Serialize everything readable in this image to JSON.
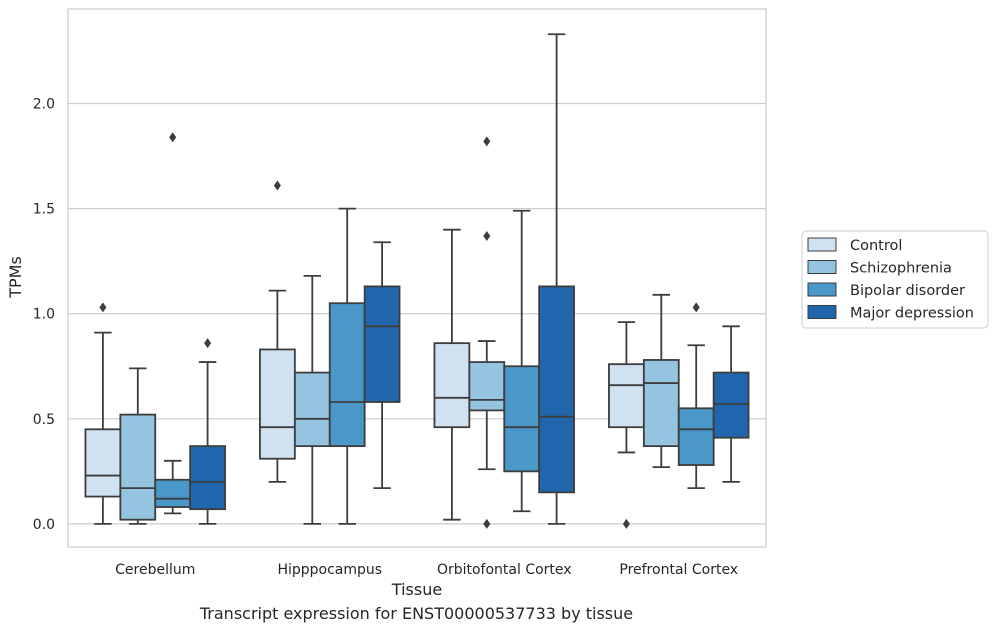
{
  "chart_data": {
    "type": "box",
    "xlabel": "Tissue",
    "ylabel": "TPMs",
    "caption": "Transcript expression for ENST00000537733 by tissue",
    "ylim": [
      -0.11,
      2.45
    ],
    "yticks": [
      "0.0",
      "0.5",
      "1.0",
      "1.5",
      "2.0"
    ],
    "grid": "horizontal",
    "legend_position": "right",
    "categories": [
      "Cerebellum",
      "Hipppocampus",
      "Orbitofontal Cortex",
      "Prefrontal Cortex"
    ],
    "series": [
      {
        "name": "Control",
        "color": "#d0e1f2",
        "boxes": [
          {
            "whislo": 0.0,
            "q1": 0.13,
            "med": 0.23,
            "q3": 0.45,
            "whishi": 0.91,
            "fliers": [
              1.03
            ]
          },
          {
            "whislo": 0.2,
            "q1": 0.31,
            "med": 0.46,
            "q3": 0.83,
            "whishi": 1.11,
            "fliers": [
              1.61
            ]
          },
          {
            "whislo": 0.02,
            "q1": 0.46,
            "med": 0.6,
            "q3": 0.86,
            "whishi": 1.4,
            "fliers": []
          },
          {
            "whislo": 0.34,
            "q1": 0.46,
            "med": 0.66,
            "q3": 0.76,
            "whishi": 0.96,
            "fliers": [
              0.0
            ]
          }
        ]
      },
      {
        "name": "Schizophrenia",
        "color": "#94c4df",
        "boxes": [
          {
            "whislo": 0.0,
            "q1": 0.02,
            "med": 0.17,
            "q3": 0.52,
            "whishi": 0.74,
            "fliers": []
          },
          {
            "whislo": 0.0,
            "q1": 0.37,
            "med": 0.5,
            "q3": 0.72,
            "whishi": 1.18,
            "fliers": []
          },
          {
            "whislo": 0.26,
            "q1": 0.54,
            "med": 0.59,
            "q3": 0.77,
            "whishi": 0.87,
            "fliers": [
              1.82,
              1.37,
              0.0
            ]
          },
          {
            "whislo": 0.27,
            "q1": 0.37,
            "med": 0.67,
            "q3": 0.78,
            "whishi": 1.09,
            "fliers": []
          }
        ]
      },
      {
        "name": "Bipolar disorder",
        "color": "#4a98c9",
        "boxes": [
          {
            "whislo": 0.05,
            "q1": 0.08,
            "med": 0.12,
            "q3": 0.21,
            "whishi": 0.3,
            "fliers": [
              1.84
            ]
          },
          {
            "whislo": 0.0,
            "q1": 0.37,
            "med": 0.58,
            "q3": 1.05,
            "whishi": 1.5,
            "fliers": []
          },
          {
            "whislo": 0.06,
            "q1": 0.25,
            "med": 0.46,
            "q3": 0.75,
            "whishi": 1.49,
            "fliers": []
          },
          {
            "whislo": 0.17,
            "q1": 0.28,
            "med": 0.45,
            "q3": 0.55,
            "whishi": 0.85,
            "fliers": [
              1.03
            ]
          }
        ]
      },
      {
        "name": "Major depression",
        "color": "#2166ac",
        "boxes": [
          {
            "whislo": 0.0,
            "q1": 0.07,
            "med": 0.2,
            "q3": 0.37,
            "whishi": 0.77,
            "fliers": [
              0.86
            ]
          },
          {
            "whislo": 0.17,
            "q1": 0.58,
            "med": 0.94,
            "q3": 1.13,
            "whishi": 1.34,
            "fliers": []
          },
          {
            "whislo": 0.0,
            "q1": 0.15,
            "med": 0.51,
            "q3": 1.13,
            "whishi": 2.33,
            "fliers": []
          },
          {
            "whislo": 0.2,
            "q1": 0.41,
            "med": 0.57,
            "q3": 0.72,
            "whishi": 0.94,
            "fliers": []
          }
        ]
      }
    ]
  }
}
